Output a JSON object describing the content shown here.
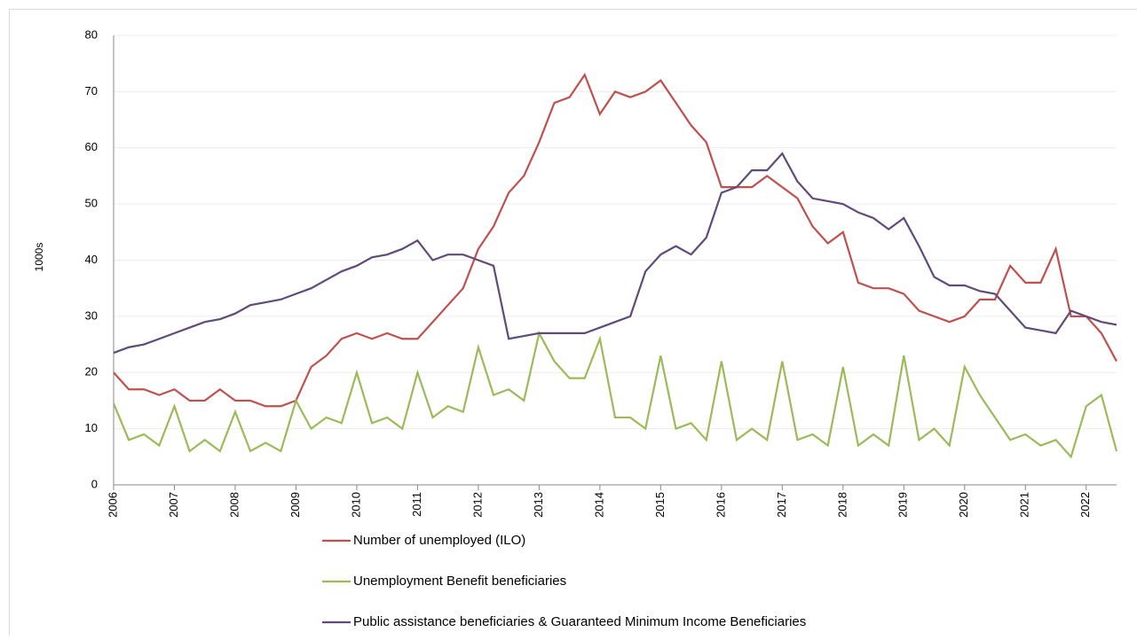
{
  "chart_data": {
    "type": "line",
    "y_label": "1000s",
    "x": [
      2006,
      2006.25,
      2006.5,
      2006.75,
      2007,
      2007.25,
      2007.5,
      2007.75,
      2008,
      2008.25,
      2008.5,
      2008.75,
      2009,
      2009.25,
      2009.5,
      2009.75,
      2010,
      2010.25,
      2010.5,
      2010.75,
      2011,
      2011.25,
      2011.5,
      2011.75,
      2012,
      2012.25,
      2012.5,
      2012.75,
      2013,
      2013.25,
      2013.5,
      2013.75,
      2014,
      2014.25,
      2014.5,
      2014.75,
      2015,
      2015.25,
      2015.5,
      2015.75,
      2016,
      2016.25,
      2016.5,
      2016.75,
      2017,
      2017.25,
      2017.5,
      2017.75,
      2018,
      2018.25,
      2018.5,
      2018.75,
      2019,
      2019.25,
      2019.5,
      2019.75,
      2020,
      2020.25,
      2020.5,
      2020.75,
      2021,
      2021.25,
      2021.5,
      2021.75,
      2022,
      2022.25,
      2022.5
    ],
    "series": [
      {
        "name": "Number of unemployed (ILO)",
        "color": "#c0504d",
        "values": [
          20,
          17,
          17,
          16,
          17,
          15,
          15,
          17,
          15,
          15,
          14,
          14,
          15,
          21,
          23,
          26,
          27,
          26,
          27,
          26,
          26,
          29,
          32,
          35,
          42,
          46,
          52,
          55,
          61,
          68,
          69,
          73,
          66,
          70,
          69,
          70,
          72,
          68,
          64,
          61,
          53,
          53,
          53,
          55,
          53,
          51,
          46,
          43,
          45,
          36,
          35,
          35,
          34,
          31,
          30,
          29,
          30,
          33,
          33,
          39,
          36,
          36,
          42,
          30,
          30,
          27,
          22
        ]
      },
      {
        "name": "Unemployment Benefit beneficiaries",
        "color": "#9bbb59",
        "values": [
          14.5,
          8,
          9,
          7,
          14,
          6,
          8,
          6,
          13,
          6,
          7.5,
          6,
          15,
          10,
          12,
          11,
          20,
          11,
          12,
          10,
          20,
          12,
          14,
          13,
          24.5,
          16,
          17,
          15,
          27,
          22,
          19,
          19,
          26,
          12,
          12,
          10,
          23,
          10,
          11,
          8,
          22,
          8,
          10,
          8,
          22,
          8,
          9,
          7,
          21,
          7,
          9,
          7,
          23,
          8,
          10,
          7,
          21,
          16,
          12,
          8,
          9,
          7,
          8,
          5,
          14,
          16,
          6
        ]
      },
      {
        "name": "Public assistance beneficiaries & Guaranteed Minimum Income Beneficiaries",
        "color": "#604a7b",
        "values": [
          23.5,
          24.5,
          25,
          26,
          27,
          28,
          29,
          29.5,
          30.5,
          32,
          32.5,
          33,
          34,
          35,
          36.5,
          38,
          39,
          40.5,
          41,
          42,
          43.5,
          40,
          41,
          41,
          40,
          39,
          26,
          26.5,
          27,
          27,
          27,
          27,
          28,
          29,
          30,
          38,
          41,
          42.5,
          41,
          44,
          52,
          53,
          56,
          56,
          59,
          54,
          51,
          50.5,
          50,
          48.5,
          47.5,
          45.5,
          47.5,
          42.5,
          37,
          35.5,
          35.5,
          34.5,
          34,
          31,
          28,
          27.5,
          27,
          31,
          30,
          29,
          28.5
        ]
      }
    ],
    "xlim": [
      2006,
      2022.5
    ],
    "xticks": [
      2006,
      2007,
      2008,
      2009,
      2010,
      2011,
      2012,
      2013,
      2014,
      2015,
      2016,
      2017,
      2018,
      2019,
      2020,
      2021,
      2022
    ],
    "ylim": [
      0,
      80
    ],
    "yticks": [
      0,
      10,
      20,
      30,
      40,
      50,
      60,
      70,
      80
    ],
    "grid": true
  }
}
